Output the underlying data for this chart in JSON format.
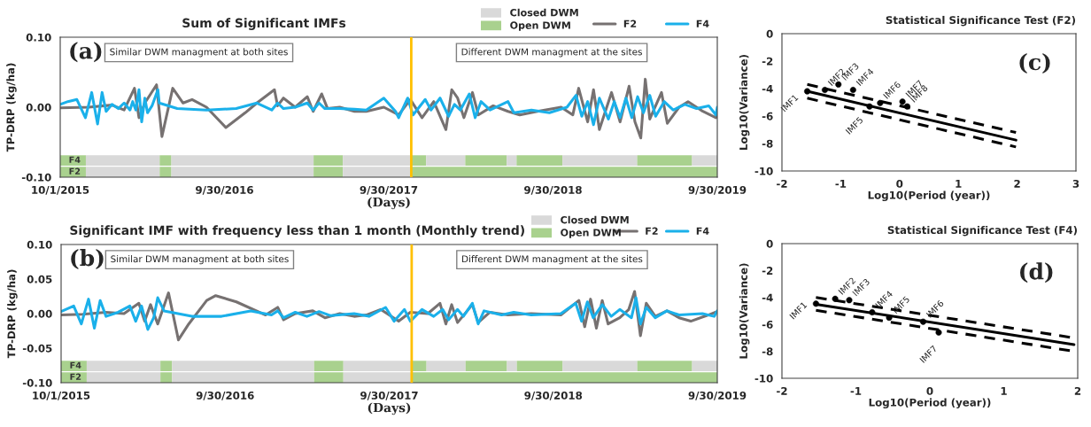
{
  "chart_data": [
    {
      "type": "line",
      "title": "Sum of Significant IMFs",
      "xlabel": "(Days)",
      "ylabel": "TP-DRP (kg/ha)",
      "xlim": [
        "2015-10-01",
        "2019-09-30"
      ],
      "xticks": [
        {
          "value": "2015-10-01",
          "label": "10/1/2015"
        },
        {
          "value": "2016-09-30",
          "label": "9/30/2016"
        },
        {
          "value": "2017-09-30",
          "label": "9/30/2017"
        },
        {
          "value": "2018-09-30",
          "label": "9/30/2018"
        },
        {
          "value": "2019-09-30",
          "label": "9/30/2019"
        }
      ],
      "ylim": [
        -0.1,
        0.1
      ],
      "yticks": [
        {
          "value": -0.1,
          "label": "-0.10"
        },
        {
          "value": 0,
          "label": "0.00"
        },
        {
          "value": 0.1,
          "label": "0.10"
        }
      ],
      "legend": "top right",
      "ref_lines": [
        {
          "axis": "x",
          "value": "2017-11-19",
          "color": "#ffc000"
        }
      ],
      "annotations": [
        "(a)",
        "Similar DWM managment at both sites",
        "Different DWM managment at the sites",
        "F4",
        "F2"
      ],
      "bands": [
        {
          "axis": "x",
          "from": "2015-10-01",
          "to": "2015-11-27",
          "color": "#a9d18e",
          "label": "Open DWM"
        },
        {
          "axis": "x",
          "from": "2015-11-27",
          "to": "2016-05-09",
          "color": "#d9d9d9",
          "label": "Closed DWM"
        },
        {
          "axis": "x",
          "from": "2016-05-09",
          "to": "2016-06-04",
          "color": "#a9d18e"
        },
        {
          "axis": "x",
          "from": "2016-06-04",
          "to": "2017-04-16",
          "color": "#d9d9d9"
        },
        {
          "axis": "x",
          "from": "2017-04-16",
          "to": "2017-06-20",
          "color": "#a9d18e"
        },
        {
          "axis": "x",
          "from": "2017-06-20",
          "to": "2017-11-19",
          "color": "#d9d9d9"
        },
        {
          "axis": "x",
          "from": "2017-11-19",
          "to": "2017-12-22",
          "color": "#a9d18e"
        },
        {
          "axis": "x",
          "from": "2017-12-22",
          "to": "2018-03-19",
          "color": "#d9d9d9"
        },
        {
          "axis": "x",
          "from": "2018-03-19",
          "to": "2018-06-19",
          "color": "#a9d18e"
        },
        {
          "axis": "x",
          "from": "2018-06-19",
          "to": "2018-07-11",
          "color": "#d9d9d9"
        },
        {
          "axis": "x",
          "from": "2018-07-11",
          "to": "2018-10-21",
          "color": "#a9d18e"
        },
        {
          "axis": "x",
          "from": "2018-10-21",
          "to": "2019-04-05",
          "color": "#d9d9d9"
        },
        {
          "axis": "x",
          "from": "2019-04-05",
          "to": "2019-08-05",
          "color": "#a9d18e"
        },
        {
          "axis": "x",
          "from": "2019-08-05",
          "to": "2019-09-30",
          "color": "#d9d9d9"
        },
        {
          "axis": "x",
          "from": "2015-10-01",
          "to": "2015-11-27",
          "color": "#a9d18e"
        },
        {
          "axis": "x",
          "from": "2015-11-27",
          "to": "2016-05-09",
          "color": "#d9d9d9"
        },
        {
          "axis": "x",
          "from": "2016-05-09",
          "to": "2016-06-04",
          "color": "#a9d18e"
        },
        {
          "axis": "x",
          "from": "2016-06-04",
          "to": "2017-04-16",
          "color": "#d9d9d9"
        },
        {
          "axis": "x",
          "from": "2017-04-16",
          "to": "2017-06-20",
          "color": "#a9d18e"
        },
        {
          "axis": "x",
          "from": "2017-06-20",
          "to": "2017-11-19",
          "color": "#d9d9d9"
        },
        {
          "axis": "x",
          "from": "2017-11-19",
          "to": "2019-09-30",
          "color": "#a9d18e"
        }
      ],
      "series": [
        {
          "name": "F2",
          "color": "#767171",
          "x": [
            "2015-10-01",
            "2015-12-03",
            "2016-01-24",
            "2016-02-20",
            "2016-03-14",
            "2016-03-24",
            "2016-04-06",
            "2016-05-02",
            "2016-05-14",
            "2016-06-07",
            "2016-06-30",
            "2016-07-20",
            "2016-08-21",
            "2016-10-03",
            "2016-11-15",
            "2016-12-11",
            "2017-01-19",
            "2017-01-26",
            "2017-02-08",
            "2017-03-06",
            "2017-04-02",
            "2017-04-15",
            "2017-05-04",
            "2017-05-17",
            "2017-06-13",
            "2017-07-16",
            "2017-08-11",
            "2017-09-19",
            "2017-10-22",
            "2017-11-17",
            "2017-12-13",
            "2018-01-08",
            "2018-02-04",
            "2018-02-17",
            "2018-03-02",
            "2018-03-16",
            "2018-04-04",
            "2018-04-17",
            "2018-05-20",
            "2018-06-22",
            "2018-07-18",
            "2018-08-26",
            "2018-10-18",
            "2018-11-13",
            "2018-11-26",
            "2018-12-16",
            "2018-12-29",
            "2019-01-11",
            "2019-02-07",
            "2019-02-26",
            "2019-03-18",
            "2019-03-31",
            "2019-04-13",
            "2019-04-23",
            "2019-05-03",
            "2019-05-29",
            "2019-06-11",
            "2019-07-07",
            "2019-07-27",
            "2019-08-29",
            "2019-09-27",
            "2019-09-30"
          ],
          "values": [
            -0.001,
            0,
            0.003,
            -0.004,
            0.027,
            -0.015,
            0.006,
            0.032,
            -0.042,
            0.027,
            0.006,
            0.011,
            0,
            -0.029,
            -0.008,
            0.006,
            0.025,
            0.002,
            0.013,
            0,
            0.015,
            -0.006,
            0.019,
            -0.002,
            0,
            -0.006,
            -0.006,
            0,
            -0.011,
            0.011,
            -0.015,
            0.008,
            -0.032,
            0.025,
            0.013,
            -0.015,
            0.021,
            -0.011,
            0.002,
            -0.006,
            -0.011,
            -0.006,
            0,
            -0.011,
            0.027,
            -0.021,
            0.025,
            -0.032,
            0.021,
            -0.021,
            0.03,
            -0.021,
            -0.044,
            0.04,
            -0.017,
            0.021,
            -0.023,
            0,
            0.008,
            -0.006,
            -0.015,
            -0.006
          ]
        },
        {
          "name": "F4",
          "color": "#1ab0ea",
          "x": [
            "2015-10-01",
            "2015-10-18",
            "2015-11-07",
            "2015-11-26",
            "2015-12-10",
            "2015-12-23",
            "2016-01-02",
            "2016-01-11",
            "2016-01-24",
            "2016-02-07",
            "2016-02-20",
            "2016-03-04",
            "2016-03-10",
            "2016-03-17",
            "2016-03-24",
            "2016-03-30",
            "2016-04-06",
            "2016-04-12",
            "2016-04-22",
            "2016-05-05",
            "2016-05-08",
            "2016-06-17",
            "2016-08-21",
            "2016-10-26",
            "2016-12-11",
            "2017-01-13",
            "2017-01-26",
            "2017-02-08",
            "2017-03-06",
            "2017-04-02",
            "2017-04-15",
            "2017-04-28",
            "2017-05-11",
            "2017-06-13",
            "2017-07-16",
            "2017-08-11",
            "2017-09-19",
            "2017-10-15",
            "2017-10-22",
            "2017-11-11",
            "2017-11-23",
            "2017-12-20",
            "2018-01-02",
            "2018-01-22",
            "2018-02-10",
            "2018-02-23",
            "2018-03-08",
            "2018-03-28",
            "2018-04-10",
            "2018-04-23",
            "2018-05-13",
            "2018-06-22",
            "2018-07-05",
            "2018-08-13",
            "2018-09-22",
            "2018-10-31",
            "2018-11-20",
            "2018-12-03",
            "2018-12-16",
            "2018-12-29",
            "2019-01-11",
            "2019-01-31",
            "2019-02-13",
            "2019-02-26",
            "2019-03-11",
            "2019-03-24",
            "2019-04-06",
            "2019-04-19",
            "2019-05-03",
            "2019-05-16",
            "2019-06-04",
            "2019-06-24",
            "2019-07-20",
            "2019-08-15",
            "2019-09-11",
            "2019-09-27",
            "2019-09-30"
          ],
          "values": [
            0.004,
            0.008,
            0.011,
            -0.015,
            0.021,
            -0.024,
            0.021,
            -0.006,
            0.004,
            -0.002,
            0.006,
            -0.004,
            0.008,
            -0.004,
            0.025,
            -0.021,
            0.013,
            -0.008,
            0.002,
            0.025,
            0.006,
            -0.002,
            -0.004,
            -0.002,
            0.006,
            -0.004,
            0.006,
            -0.002,
            0,
            0.006,
            -0.004,
            0.006,
            -0.002,
            -0.002,
            -0.003,
            -0.004,
            0.013,
            -0.006,
            -0.015,
            0.013,
            -0.011,
            0.011,
            -0.004,
            0.013,
            -0.013,
            0.004,
            -0.004,
            0.019,
            -0.015,
            0.008,
            -0.004,
            0.008,
            -0.008,
            -0.004,
            -0.008,
            0,
            0.017,
            -0.013,
            0.008,
            -0.025,
            0.013,
            -0.017,
            0.008,
            -0.015,
            0.013,
            -0.015,
            0.015,
            -0.008,
            0.017,
            -0.013,
            0.008,
            -0.004,
            0.004,
            -0.002,
            0.002,
            -0.011,
            0
          ]
        }
      ]
    },
    {
      "type": "scatter",
      "title": "Statistical Significance Test (F2)",
      "xlabel": "Log10(Period (year))",
      "ylabel": "Log10(Variance)",
      "xlim": [
        -2,
        3
      ],
      "xticks": [
        -2,
        -1,
        0,
        1,
        2,
        3
      ],
      "ylim": [
        -10,
        0
      ],
      "yticks": [
        -10,
        -8,
        -6,
        -4,
        -2,
        0
      ],
      "annotations": [
        "(c)"
      ],
      "series": [
        {
          "type": "scatter",
          "marker": "circle",
          "color": "#000000",
          "x": [
            -1.57,
            -1.27,
            -1.04,
            -0.79,
            -0.51,
            -0.33,
            0.05,
            0.13
          ],
          "values": [
            -4.2,
            -4.1,
            -3.7,
            -4.1,
            -5.3,
            -5.05,
            -4.95,
            -5.3
          ],
          "value_labels": [
            "IMF1",
            "IMF2",
            "IMF3",
            "IMF4",
            "IMF5",
            "IMF6",
            "IMF7",
            "IMF8"
          ]
        },
        {
          "type": "line",
          "color": "#000000",
          "x": [
            -1.57,
            1.98
          ],
          "values": [
            -4.2,
            -7.75
          ]
        },
        {
          "type": "line",
          "color": "#000000",
          "line_style": "dashed",
          "x": [
            -1.57,
            1.98
          ],
          "values": [
            -3.7,
            -7.2
          ]
        },
        {
          "type": "line",
          "color": "#000000",
          "line_style": "dashed",
          "x": [
            -1.57,
            1.98
          ],
          "values": [
            -4.7,
            -8.25
          ]
        }
      ]
    },
    {
      "type": "line",
      "title": "Significant IMF with frequency less than 1 month (Monthly trend)",
      "xlabel": "(Days)",
      "ylabel": "TP-DRP (kg/ha)",
      "xlim": [
        "2015-10-01",
        "2019-09-30"
      ],
      "xticks": [
        {
          "value": "2015-10-01",
          "label": "10/1/2015"
        },
        {
          "value": "2016-09-30",
          "label": "9/30/2016"
        },
        {
          "value": "2017-09-30",
          "label": "9/30/2017"
        },
        {
          "value": "2018-09-30",
          "label": "9/30/2018"
        },
        {
          "value": "2019-09-30",
          "label": "9/30/2019"
        }
      ],
      "ylim": [
        -0.1,
        0.1
      ],
      "yticks": [
        {
          "value": -0.1,
          "label": "-0.10"
        },
        {
          "value": -0.05,
          "label": "-0.05"
        },
        {
          "value": 0,
          "label": "0.00"
        },
        {
          "value": 0.05,
          "label": "0.05"
        },
        {
          "value": 0.1,
          "label": "0.10"
        }
      ],
      "legend": "top right",
      "ref_lines": [
        {
          "axis": "x",
          "value": "2017-11-19",
          "color": "#ffc000"
        }
      ],
      "annotations": [
        "(b)",
        "Similar DWM managment at both sites",
        "Different DWM managment at the sites",
        "F4",
        "F2"
      ],
      "bands": [
        {
          "axis": "x",
          "from": "2015-10-01",
          "to": "2015-11-27",
          "color": "#a9d18e",
          "label": "Open DWM"
        },
        {
          "axis": "x",
          "from": "2015-11-27",
          "to": "2016-05-09",
          "color": "#d9d9d9",
          "label": "Closed DWM"
        },
        {
          "axis": "x",
          "from": "2016-05-09",
          "to": "2016-06-04",
          "color": "#a9d18e"
        },
        {
          "axis": "x",
          "from": "2016-06-04",
          "to": "2017-04-16",
          "color": "#d9d9d9"
        },
        {
          "axis": "x",
          "from": "2017-04-16",
          "to": "2017-06-20",
          "color": "#a9d18e"
        },
        {
          "axis": "x",
          "from": "2017-06-20",
          "to": "2017-11-19",
          "color": "#d9d9d9"
        },
        {
          "axis": "x",
          "from": "2017-11-19",
          "to": "2017-12-22",
          "color": "#a9d18e"
        },
        {
          "axis": "x",
          "from": "2017-12-22",
          "to": "2018-03-19",
          "color": "#d9d9d9"
        },
        {
          "axis": "x",
          "from": "2018-03-19",
          "to": "2018-06-19",
          "color": "#a9d18e"
        },
        {
          "axis": "x",
          "from": "2018-06-19",
          "to": "2018-07-11",
          "color": "#d9d9d9"
        },
        {
          "axis": "x",
          "from": "2018-07-11",
          "to": "2018-10-21",
          "color": "#a9d18e"
        },
        {
          "axis": "x",
          "from": "2018-10-21",
          "to": "2019-04-05",
          "color": "#d9d9d9"
        },
        {
          "axis": "x",
          "from": "2019-04-05",
          "to": "2019-08-05",
          "color": "#a9d18e"
        },
        {
          "axis": "x",
          "from": "2019-08-05",
          "to": "2019-09-30",
          "color": "#d9d9d9"
        },
        {
          "axis": "x",
          "from": "2015-10-01",
          "to": "2015-11-27",
          "color": "#a9d18e"
        },
        {
          "axis": "x",
          "from": "2015-11-27",
          "to": "2016-05-09",
          "color": "#d9d9d9"
        },
        {
          "axis": "x",
          "from": "2016-05-09",
          "to": "2016-06-04",
          "color": "#a9d18e"
        },
        {
          "axis": "x",
          "from": "2016-06-04",
          "to": "2017-04-16",
          "color": "#d9d9d9"
        },
        {
          "axis": "x",
          "from": "2017-04-16",
          "to": "2017-06-20",
          "color": "#a9d18e"
        },
        {
          "axis": "x",
          "from": "2017-06-20",
          "to": "2017-11-19",
          "color": "#d9d9d9"
        },
        {
          "axis": "x",
          "from": "2017-11-19",
          "to": "2019-09-30",
          "color": "#a9d18e"
        }
      ],
      "series": [
        {
          "name": "F2",
          "color": "#767171",
          "x": [
            "2015-10-01",
            "2015-11-18",
            "2016-01-09",
            "2016-02-18",
            "2016-03-22",
            "2016-04-04",
            "2016-04-17",
            "2016-05-03",
            "2016-05-27",
            "2016-06-18",
            "2016-07-11",
            "2016-08-20",
            "2016-09-09",
            "2016-10-25",
            "2016-12-29",
            "2017-01-25",
            "2017-02-07",
            "2017-03-05",
            "2017-04-13",
            "2017-05-10",
            "2017-06-12",
            "2017-07-14",
            "2017-08-10",
            "2017-09-11",
            "2017-10-21",
            "2017-11-16",
            "2017-12-25",
            "2018-01-21",
            "2018-02-03",
            "2018-02-16",
            "2018-03-01",
            "2018-04-03",
            "2018-04-16",
            "2018-05-12",
            "2018-06-21",
            "2018-08-12",
            "2018-10-17",
            "2018-11-26",
            "2018-12-09",
            "2018-12-22",
            "2019-01-04",
            "2019-01-17",
            "2019-01-30",
            "2019-02-25",
            "2019-03-17",
            "2019-03-30",
            "2019-04-12",
            "2019-04-25",
            "2019-05-15",
            "2019-06-10",
            "2019-07-07",
            "2019-08-02",
            "2019-09-10",
            "2019-09-26"
          ],
          "values": [
            -0.002,
            -0.001,
            0.002,
            0,
            0.015,
            -0.011,
            0.013,
            -0.015,
            0.03,
            -0.038,
            -0.015,
            0.019,
            0.026,
            0.017,
            -0.002,
            0.009,
            -0.009,
            0,
            0.004,
            -0.006,
            0,
            -0.004,
            -0.002,
            0.006,
            -0.011,
            0.002,
            0,
            0.015,
            -0.015,
            0.013,
            -0.013,
            0.013,
            -0.013,
            0.002,
            -0.002,
            0,
            -0.002,
            0.019,
            -0.019,
            0.021,
            -0.021,
            0.019,
            -0.015,
            -0.006,
            0.006,
            0.032,
            -0.032,
            0.015,
            -0.004,
            0.004,
            -0.006,
            -0.011,
            -0.002,
            0.002
          ]
        },
        {
          "name": "F4",
          "color": "#1ab0ea",
          "x": [
            "2015-10-01",
            "2015-10-29",
            "2015-11-15",
            "2015-12-01",
            "2015-12-14",
            "2015-12-27",
            "2016-01-09",
            "2016-02-05",
            "2016-03-02",
            "2016-03-15",
            "2016-03-28",
            "2016-04-11",
            "2016-04-24",
            "2016-05-03",
            "2016-05-17",
            "2016-07-18",
            "2016-09-22",
            "2016-11-26",
            "2017-01-11",
            "2017-01-25",
            "2017-02-07",
            "2017-03-05",
            "2017-03-31",
            "2017-04-27",
            "2017-05-23",
            "2017-07-14",
            "2017-08-16",
            "2017-09-22",
            "2017-10-11",
            "2017-11-03",
            "2017-11-16",
            "2017-12-12",
            "2018-01-07",
            "2018-01-27",
            "2018-02-09",
            "2018-03-01",
            "2018-03-14",
            "2018-04-03",
            "2018-04-16",
            "2018-04-29",
            "2018-06-07",
            "2018-07-04",
            "2018-08-12",
            "2018-10-17",
            "2018-11-19",
            "2018-12-02",
            "2018-12-15",
            "2018-12-28",
            "2019-01-17",
            "2019-02-06",
            "2019-02-25",
            "2019-03-23",
            "2019-04-02",
            "2019-04-12",
            "2019-04-25",
            "2019-05-15",
            "2019-06-10",
            "2019-07-07",
            "2019-08-28",
            "2019-09-23",
            "2019-09-30"
          ],
          "values": [
            0.003,
            0.011,
            -0.015,
            0.021,
            -0.021,
            0.019,
            -0.004,
            0.002,
            0.011,
            -0.011,
            0.011,
            -0.023,
            -0.006,
            0.023,
            0.004,
            -0.004,
            -0.004,
            0.004,
            -0.002,
            0.004,
            -0.006,
            0.002,
            -0.004,
            0.003,
            -0.003,
            0,
            -0.004,
            0.009,
            -0.011,
            0.006,
            -0.011,
            0.006,
            -0.004,
            0.006,
            -0.009,
            0.006,
            -0.004,
            0.015,
            -0.015,
            0.004,
            -0.002,
            0.002,
            -0.002,
            0,
            0.015,
            -0.011,
            0.017,
            -0.006,
            0.013,
            -0.004,
            0.006,
            -0.006,
            0.023,
            -0.015,
            0.009,
            -0.006,
            0.004,
            -0.002,
            0,
            -0.004,
            0.004
          ]
        }
      ]
    },
    {
      "type": "scatter",
      "title": "Statistical Significance Test (F4)",
      "xlabel": "Log10(Period (year))",
      "ylabel": "Log10(Variance)",
      "xlim": [
        -2,
        2
      ],
      "xticks": [
        -2,
        -1,
        0,
        1,
        2
      ],
      "ylim": [
        -10,
        0
      ],
      "yticks": [
        -10,
        -8,
        -6,
        -4,
        -2,
        0
      ],
      "annotations": [
        "(d)"
      ],
      "series": [
        {
          "type": "scatter",
          "marker": "circle",
          "color": "#000000",
          "x": [
            -1.54,
            -1.28,
            -1.09,
            -0.78,
            -0.55,
            -0.09,
            0.12
          ],
          "values": [
            -4.46,
            -4.1,
            -4.2,
            -5.1,
            -5.5,
            -5.8,
            -6.6
          ],
          "value_labels": [
            "IMF1",
            "IMF2",
            "IMF3",
            "IMF4",
            "IMF5",
            "IMF6",
            "IMF7"
          ]
        },
        {
          "type": "line",
          "color": "#000000",
          "x": [
            -1.54,
            1.95
          ],
          "values": [
            -4.5,
            -7.5
          ]
        },
        {
          "type": "line",
          "color": "#000000",
          "line_style": "dashed",
          "x": [
            -1.54,
            1.95
          ],
          "values": [
            -4.0,
            -7.0
          ]
        },
        {
          "type": "line",
          "color": "#000000",
          "line_style": "dashed",
          "x": [
            -1.54,
            1.95
          ],
          "values": [
            -4.95,
            -8.0
          ]
        }
      ]
    }
  ]
}
